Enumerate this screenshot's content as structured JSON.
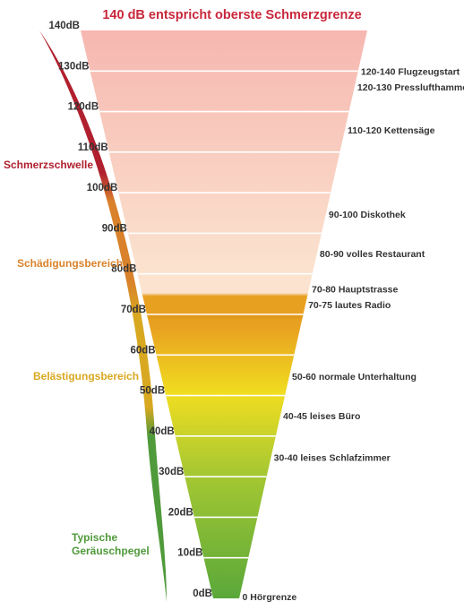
{
  "title": "140 dB entspricht oberste Schmerzgrenze",
  "colors": {
    "title": "#c8283c",
    "pain_zone": "#b0202e",
    "damage_zone": "#d9822b",
    "annoyance_zone": "#d8a820",
    "typical_zone": "#4f9a3a",
    "funnel_top": "#f6b7b0",
    "funnel_mid": "#fbe3cf",
    "funnel_orange": "#e8a020",
    "funnel_yellow": "#f0dd20",
    "funnel_green": "#5aa83a",
    "band_line": "#ffffff"
  },
  "db_levels": [
    {
      "db": 140,
      "label": "140dB"
    },
    {
      "db": 130,
      "label": "130dB"
    },
    {
      "db": 120,
      "label": "120dB"
    },
    {
      "db": 110,
      "label": "110dB"
    },
    {
      "db": 100,
      "label": "100dB"
    },
    {
      "db": 90,
      "label": "90dB"
    },
    {
      "db": 80,
      "label": "80dB"
    },
    {
      "db": 70,
      "label": "70dB"
    },
    {
      "db": 60,
      "label": "60dB"
    },
    {
      "db": 50,
      "label": "50dB"
    },
    {
      "db": 40,
      "label": "40dB"
    },
    {
      "db": 30,
      "label": "30dB"
    },
    {
      "db": 20,
      "label": "20dB"
    },
    {
      "db": 10,
      "label": "10dB"
    },
    {
      "db": 0,
      "label": "0dB"
    }
  ],
  "examples": [
    {
      "db": 130,
      "label": "120-140 Flugzeugstart"
    },
    {
      "db": 125,
      "label": "120-130 Presslufthammer"
    },
    {
      "db": 115,
      "label": "110-120 Kettensäge"
    },
    {
      "db": 95,
      "label": "90-100 Diskothek"
    },
    {
      "db": 85,
      "label": "80-90 volles Restaurant"
    },
    {
      "db": 75,
      "label": "70-80 Hauptstrasse"
    },
    {
      "db": 72,
      "label": "70-75 lautes Radio"
    },
    {
      "db": 55,
      "label": "50-60 normale Unterhaltung"
    },
    {
      "db": 45,
      "label": "40-45 leises Büro"
    },
    {
      "db": 35,
      "label": "30-40 leises Schlafzimmer"
    },
    {
      "db": 0,
      "label": "0 Hörgrenze"
    }
  ],
  "zones": [
    {
      "key": "pain",
      "label": [
        "Schmerzschwelle"
      ],
      "from_db": 140,
      "to_db": 100
    },
    {
      "key": "damage",
      "label": [
        "Schädigungsbereich"
      ],
      "from_db": 100,
      "to_db": 70
    },
    {
      "key": "annoyance",
      "label": [
        "Belästigungsbereich"
      ],
      "from_db": 70,
      "to_db": 40
    },
    {
      "key": "typical",
      "label": [
        "Typische",
        "Geräuschpegel"
      ],
      "from_db": 40,
      "to_db": 0
    }
  ]
}
